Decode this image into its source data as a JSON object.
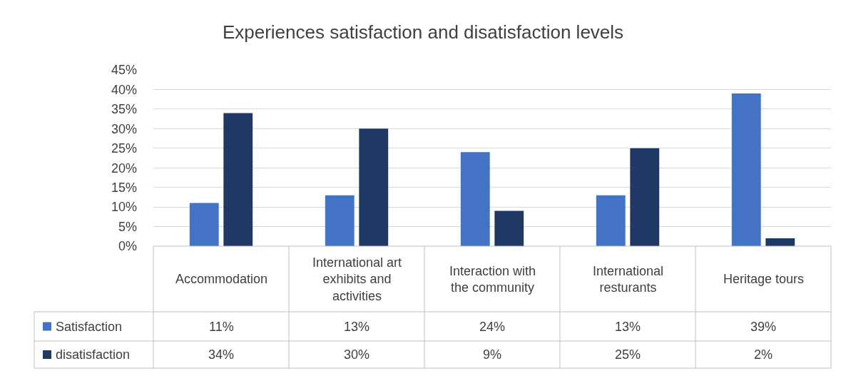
{
  "chart_data": {
    "type": "bar",
    "title": "Experiences satisfaction and disatisfaction levels",
    "categories": [
      "Accommodation",
      "International art exhibits and activities",
      "Interaction with the community",
      "International resturants",
      "Heritage tours"
    ],
    "series": [
      {
        "name": "Satisfaction",
        "color": "#4472c4",
        "values": [
          11,
          13,
          24,
          13,
          39
        ],
        "value_labels": [
          "11%",
          "13%",
          "24%",
          "13%",
          "39%"
        ]
      },
      {
        "name": "disatisfaction",
        "color": "#1f3864",
        "values": [
          34,
          30,
          9,
          25,
          2
        ],
        "value_labels": [
          "34%",
          "30%",
          "9%",
          "25%",
          "2%"
        ]
      }
    ],
    "ylim": [
      0,
      45
    ],
    "yticks": [
      {
        "value": 0,
        "label": "0%"
      },
      {
        "value": 5,
        "label": "5%"
      },
      {
        "value": 10,
        "label": "10%"
      },
      {
        "value": 15,
        "label": "15%"
      },
      {
        "value": 20,
        "label": "20%"
      },
      {
        "value": 25,
        "label": "25%"
      },
      {
        "value": 30,
        "label": "30%"
      },
      {
        "value": 35,
        "label": "35%"
      },
      {
        "value": 40,
        "label": "40%"
      },
      {
        "value": 45,
        "label": "45%"
      }
    ],
    "grid": "y",
    "legend": "bottom left"
  }
}
